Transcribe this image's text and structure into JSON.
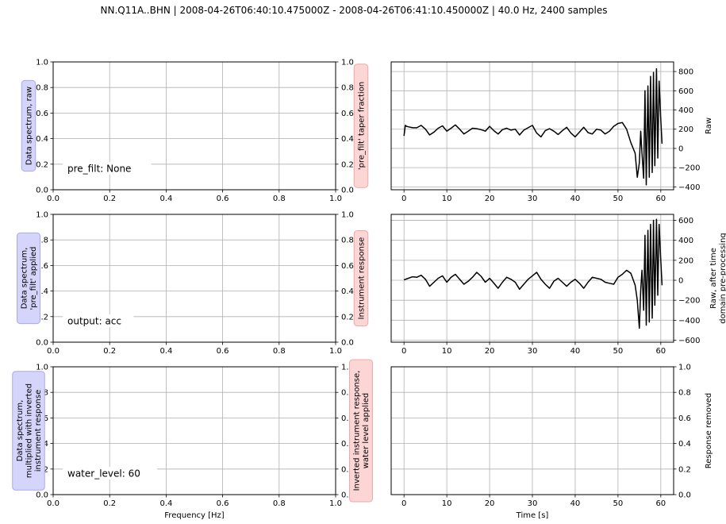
{
  "title": "NN.Q11A..BHN | 2008-04-26T06:40:10.475000Z - 2008-04-26T06:41:10.450000Z | 40.0 Hz, 2400 samples",
  "colors": {
    "blue_box_fill": "#d5d5fc",
    "blue_box_edge": "#a8a8f0",
    "red_box_fill": "#fcd5d5",
    "red_box_edge": "#f0a8a8",
    "grid": "#b0b0b0",
    "trace": "#000000"
  },
  "left_panels": [
    {
      "left_label": [
        "Data spectrum, raw"
      ],
      "right_label": [
        "'pre_filt' taper fraction"
      ],
      "annotation": "pre_filt: None",
      "xlim": [
        0,
        1
      ],
      "ylim": [
        0,
        1
      ],
      "ticks": [
        "0.0",
        "0.2",
        "0.4",
        "0.6",
        "0.8",
        "1.0"
      ],
      "xlabel": ""
    },
    {
      "left_label": [
        "Data spectrum,",
        "'pre_filt' applied"
      ],
      "right_label": [
        "Instrument response"
      ],
      "annotation": "output: acc",
      "xlim": [
        0,
        1
      ],
      "ylim": [
        0,
        1
      ],
      "ticks": [
        "0.0",
        "0.2",
        "0.4",
        "0.6",
        "0.8",
        "1.0"
      ],
      "xlabel": ""
    },
    {
      "left_label": [
        "Data spectrum,",
        "multiplied with inverted",
        "instrument response"
      ],
      "right_label": [
        "Inverted instrument response,",
        "water level applied"
      ],
      "annotation": "water_level: 60",
      "xlim": [
        0,
        1
      ],
      "ylim": [
        0,
        1
      ],
      "ticks": [
        "0.0",
        "0.2",
        "0.4",
        "0.6",
        "0.8",
        "1.0"
      ],
      "xlabel": "Frequency [Hz]"
    }
  ],
  "chart_data": [
    {
      "type": "line",
      "ylabel": [
        "Raw"
      ],
      "xlim": [
        -3,
        63
      ],
      "ylim": [
        -430,
        900
      ],
      "xticks": [
        0,
        10,
        20,
        30,
        40,
        50,
        60
      ],
      "yticks": [
        -400,
        -200,
        0,
        200,
        400,
        600,
        800
      ],
      "grid": true,
      "xlabel": "",
      "series": [
        {
          "x": [
            0,
            0.3,
            0.6,
            1,
            2,
            3,
            4,
            5,
            6,
            7,
            8,
            9,
            10,
            11,
            12,
            13,
            14,
            15,
            16,
            17,
            18,
            19,
            20,
            21,
            22,
            23,
            24,
            25,
            26,
            27,
            28,
            29,
            30,
            31,
            32,
            33,
            34,
            35,
            36,
            37,
            38,
            39,
            40,
            41,
            42,
            43,
            44,
            45,
            46,
            47,
            48,
            49,
            50,
            51,
            52,
            53,
            54,
            54.5,
            55,
            55.3,
            55.6,
            56,
            56.3,
            56.6,
            57,
            57.3,
            57.6,
            58,
            58.3,
            58.6,
            59,
            59.3,
            59.6,
            60,
            60.3
          ],
          "y": [
            130,
            240,
            230,
            225,
            215,
            215,
            240,
            200,
            140,
            170,
            210,
            235,
            180,
            210,
            245,
            200,
            150,
            180,
            210,
            205,
            195,
            180,
            230,
            185,
            150,
            195,
            210,
            190,
            200,
            140,
            190,
            215,
            240,
            160,
            120,
            185,
            205,
            180,
            145,
            185,
            220,
            160,
            120,
            170,
            220,
            165,
            150,
            200,
            190,
            150,
            180,
            230,
            260,
            270,
            200,
            60,
            -50,
            -300,
            -150,
            180,
            -50,
            -310,
            600,
            -380,
            650,
            -300,
            750,
            -250,
            790,
            -180,
            830,
            -100,
            700,
            300,
            50
          ]
        }
      ]
    },
    {
      "type": "line",
      "ylabel": [
        "Raw, after time",
        "domain pre-processing"
      ],
      "xlim": [
        -3,
        63
      ],
      "ylim": [
        -620,
        660
      ],
      "xticks": [
        0,
        10,
        20,
        30,
        40,
        50,
        60
      ],
      "yticks": [
        -600,
        -400,
        -200,
        0,
        200,
        400,
        600
      ],
      "grid": true,
      "xlabel": "",
      "series": [
        {
          "x": [
            0,
            1,
            2,
            3,
            4,
            5,
            6,
            7,
            8,
            9,
            10,
            11,
            12,
            13,
            14,
            15,
            16,
            17,
            18,
            19,
            20,
            21,
            22,
            23,
            24,
            25,
            26,
            27,
            28,
            29,
            30,
            31,
            32,
            33,
            34,
            35,
            36,
            37,
            38,
            39,
            40,
            41,
            42,
            43,
            44,
            45,
            46,
            47,
            48,
            49,
            50,
            51,
            52,
            53,
            54,
            54.5,
            55,
            55.3,
            55.6,
            56,
            56.3,
            56.6,
            57,
            57.3,
            57.6,
            58,
            58.3,
            58.6,
            59,
            59.3,
            59.6,
            60,
            60.3
          ],
          "y": [
            5,
            20,
            35,
            30,
            50,
            10,
            -60,
            -20,
            20,
            45,
            -20,
            30,
            60,
            10,
            -40,
            -10,
            30,
            80,
            40,
            -20,
            20,
            -30,
            -80,
            -20,
            30,
            10,
            -20,
            -90,
            -40,
            10,
            45,
            80,
            10,
            -40,
            -80,
            -10,
            20,
            -20,
            -60,
            -20,
            10,
            -30,
            -80,
            -20,
            30,
            20,
            10,
            -20,
            -30,
            -40,
            30,
            60,
            100,
            70,
            -50,
            -200,
            -480,
            -100,
            100,
            -300,
            450,
            -450,
            500,
            -420,
            560,
            -380,
            600,
            -250,
            610,
            -150,
            560,
            200,
            -50
          ]
        }
      ]
    },
    {
      "type": "line",
      "ylabel": [
        "Response removed"
      ],
      "xlim": [
        -3,
        63
      ],
      "ylim": [
        0,
        1
      ],
      "xticks": [
        0,
        10,
        20,
        30,
        40,
        50,
        60
      ],
      "yticks": [
        0.0,
        0.2,
        0.4,
        0.6,
        0.8,
        1.0
      ],
      "grid": true,
      "xlabel": "Time [s]",
      "series": []
    }
  ]
}
